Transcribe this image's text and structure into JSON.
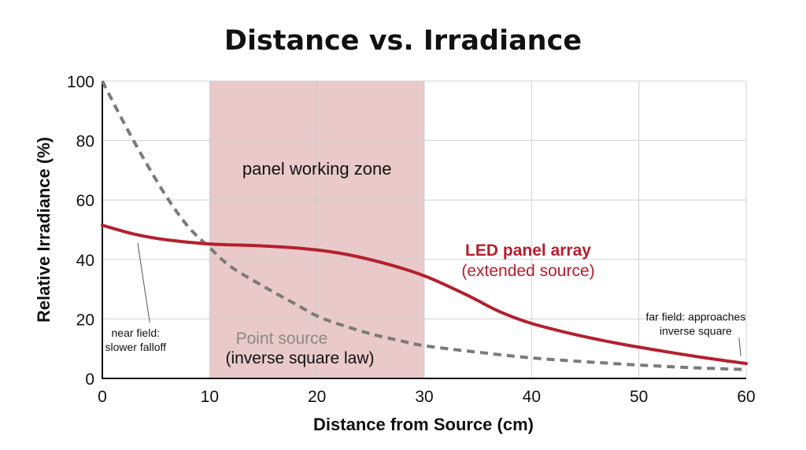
{
  "chart_data": {
    "type": "line",
    "title": "Distance vs. Irradiance",
    "xlabel": "Distance from Source (cm)",
    "ylabel": "Relative Irradiance (%)",
    "xlim": [
      0,
      60
    ],
    "ylim": [
      0,
      100
    ],
    "xticks": [
      "0",
      "10",
      "20",
      "30",
      "40",
      "50",
      "60"
    ],
    "yticks": [
      "0",
      "20",
      "40",
      "60",
      "80",
      "100"
    ],
    "grid": true,
    "shaded_region": {
      "label": "panel working zone",
      "x_start": 10,
      "x_end": 30,
      "color": "#e9c9c9"
    },
    "series": [
      {
        "name": "LED panel array",
        "name_line2": "(extended source)",
        "color": "#b3202e",
        "style": "solid",
        "points": [
          [
            0,
            51.5
          ],
          [
            3,
            48.5
          ],
          [
            6,
            46.6
          ],
          [
            10,
            45.2
          ],
          [
            14,
            44.7
          ],
          [
            18,
            43.9
          ],
          [
            22,
            42.2
          ],
          [
            26,
            39.0
          ],
          [
            30,
            34.5
          ],
          [
            34,
            28.0
          ],
          [
            37,
            22.5
          ],
          [
            40,
            18.5
          ],
          [
            44,
            14.8
          ],
          [
            48,
            11.8
          ],
          [
            52,
            9.3
          ],
          [
            56,
            7.0
          ],
          [
            60,
            5.0
          ]
        ]
      },
      {
        "name": "Point source",
        "name_line2": "(inverse square law)",
        "color": "#7a7a7a",
        "style": "dashed",
        "points": [
          [
            0,
            100
          ],
          [
            2,
            86
          ],
          [
            4,
            73
          ],
          [
            6,
            61
          ],
          [
            8,
            51
          ],
          [
            10,
            44
          ],
          [
            12,
            37.5
          ],
          [
            15,
            31
          ],
          [
            18,
            25
          ],
          [
            20,
            21
          ],
          [
            22,
            18.3
          ],
          [
            25,
            15
          ],
          [
            28,
            12.5
          ],
          [
            30,
            11
          ],
          [
            35,
            8.8
          ],
          [
            40,
            6.9
          ],
          [
            45,
            5.6
          ],
          [
            50,
            4.5
          ],
          [
            55,
            3.6
          ],
          [
            60,
            3.0
          ]
        ]
      }
    ],
    "annotations": [
      {
        "id": "near",
        "lines": [
          "near field:",
          "slower falloff"
        ],
        "x": 3.1,
        "y": 14,
        "pointer_to": [
          3.3,
          45.5
        ]
      },
      {
        "id": "far",
        "lines": [
          "far field: approaches",
          "inverse square"
        ],
        "x": 55.3,
        "y": 19.5,
        "pointer_to": [
          59.5,
          7.5
        ]
      }
    ]
  }
}
